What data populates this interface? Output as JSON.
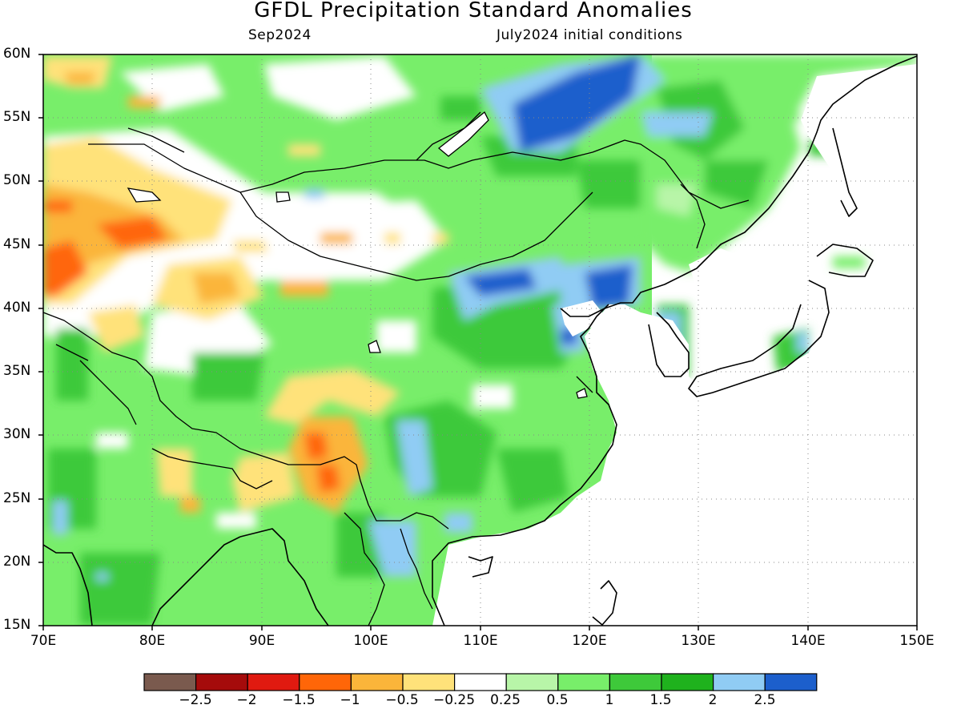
{
  "header": {
    "title": "GFDL Precipitation Standard Anomalies",
    "valid_month": "Sep2024",
    "init_conditions": "July2024 initial conditions"
  },
  "map": {
    "lon_range": [
      70,
      150
    ],
    "lat_range": [
      15,
      60
    ],
    "lat_labels": [
      "60N",
      "55N",
      "50N",
      "45N",
      "40N",
      "35N",
      "30N",
      "25N",
      "20N",
      "15N"
    ],
    "lon_labels": [
      "70E",
      "80E",
      "90E",
      "100E",
      "110E",
      "120E",
      "130E",
      "140E",
      "150E"
    ],
    "grid": "dotted"
  },
  "colorbar": {
    "colors": [
      "#7a5a4e",
      "#a50b0b",
      "#e01a10",
      "#ff6608",
      "#fbb53a",
      "#ffe27a",
      "#ffffff",
      "#b8f5a8",
      "#78ee6a",
      "#3ec93a",
      "#1fb21d",
      "#90ccf4",
      "#1c5fcc"
    ],
    "labels": [
      "-2.5",
      "-2",
      "-1.5",
      "-1",
      "-0.5",
      "-0.25",
      "0.25",
      "0.5",
      "1",
      "1.5",
      "2",
      "2.5"
    ]
  }
}
